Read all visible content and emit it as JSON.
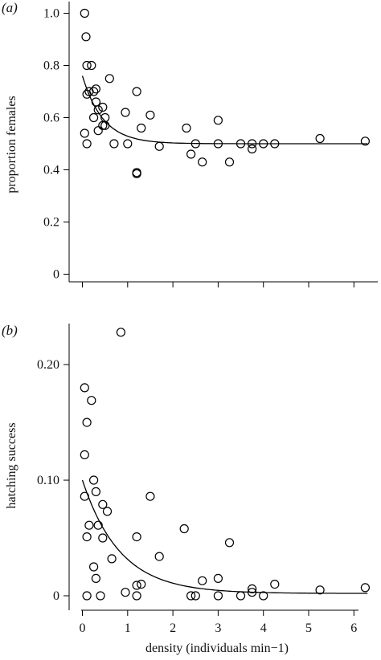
{
  "chart_data": [
    {
      "type": "scatter",
      "panel_label": "(a)",
      "ylabel": "proportion females",
      "xlim": [
        0,
        6.3
      ],
      "ylim": [
        0,
        1.0
      ],
      "yticks": [
        0,
        0.2,
        0.4,
        0.6,
        0.8,
        1.0
      ],
      "ytick_labels": [
        "0",
        "0.2",
        "0.4",
        "0.6",
        "0.8",
        "1.0"
      ],
      "grid": false,
      "fit": {
        "form": "a + b*exp(-k*x)",
        "a": 0.5,
        "b": 0.26,
        "k": 2.2
      },
      "points": [
        [
          0.05,
          1.0
        ],
        [
          0.08,
          0.91
        ],
        [
          0.1,
          0.8
        ],
        [
          0.2,
          0.8
        ],
        [
          0.1,
          0.69
        ],
        [
          0.15,
          0.7
        ],
        [
          0.25,
          0.7
        ],
        [
          0.3,
          0.71
        ],
        [
          0.3,
          0.66
        ],
        [
          0.35,
          0.63
        ],
        [
          0.25,
          0.6
        ],
        [
          0.45,
          0.64
        ],
        [
          0.5,
          0.6
        ],
        [
          0.45,
          0.57
        ],
        [
          0.5,
          0.57
        ],
        [
          0.05,
          0.54
        ],
        [
          0.35,
          0.55
        ],
        [
          0.1,
          0.5
        ],
        [
          0.6,
          0.75
        ],
        [
          0.7,
          0.5
        ],
        [
          0.95,
          0.62
        ],
        [
          1.0,
          0.5
        ],
        [
          1.2,
          0.7
        ],
        [
          1.3,
          0.56
        ],
        [
          1.2,
          0.39
        ],
        [
          1.2,
          0.385
        ],
        [
          1.5,
          0.61
        ],
        [
          1.7,
          0.49
        ],
        [
          2.3,
          0.56
        ],
        [
          2.4,
          0.46
        ],
        [
          2.5,
          0.5
        ],
        [
          2.65,
          0.43
        ],
        [
          3.0,
          0.59
        ],
        [
          3.0,
          0.5
        ],
        [
          3.25,
          0.43
        ],
        [
          3.5,
          0.5
        ],
        [
          3.75,
          0.5
        ],
        [
          3.75,
          0.48
        ],
        [
          4.0,
          0.5
        ],
        [
          4.25,
          0.5
        ],
        [
          5.25,
          0.52
        ],
        [
          6.25,
          0.51
        ]
      ]
    },
    {
      "type": "scatter",
      "panel_label": "(b)",
      "xlabel": "density (individuals min−1)",
      "ylabel": "hatching success",
      "xlim": [
        0,
        6.3
      ],
      "ylim": [
        0,
        0.24
      ],
      "xticks": [
        0,
        1,
        2,
        3,
        4,
        5,
        6
      ],
      "xtick_labels": [
        "0",
        "1",
        "2",
        "3",
        "4",
        "5",
        "6"
      ],
      "yticks": [
        0,
        0.1,
        0.2
      ],
      "ytick_labels": [
        "0",
        "0.10",
        "0.20"
      ],
      "grid": false,
      "fit": {
        "form": "a + b*exp(-k*x)",
        "a": 0.002,
        "b": 0.098,
        "k": 1.2
      },
      "points": [
        [
          0.85,
          0.228
        ],
        [
          0.05,
          0.18
        ],
        [
          0.2,
          0.169
        ],
        [
          0.1,
          0.15
        ],
        [
          0.05,
          0.122
        ],
        [
          0.25,
          0.1
        ],
        [
          0.3,
          0.09
        ],
        [
          0.05,
          0.086
        ],
        [
          0.45,
          0.079
        ],
        [
          0.55,
          0.073
        ],
        [
          0.15,
          0.061
        ],
        [
          0.35,
          0.061
        ],
        [
          0.1,
          0.051
        ],
        [
          0.45,
          0.05
        ],
        [
          1.5,
          0.086
        ],
        [
          1.2,
          0.051
        ],
        [
          1.7,
          0.034
        ],
        [
          0.65,
          0.032
        ],
        [
          0.25,
          0.025
        ],
        [
          0.3,
          0.015
        ],
        [
          0.1,
          0.0
        ],
        [
          0.4,
          0.0
        ],
        [
          0.95,
          0.003
        ],
        [
          1.2,
          0.009
        ],
        [
          1.3,
          0.01
        ],
        [
          1.2,
          0.0
        ],
        [
          2.25,
          0.058
        ],
        [
          2.4,
          0.0
        ],
        [
          2.5,
          0.0
        ],
        [
          2.65,
          0.013
        ],
        [
          3.0,
          0.015
        ],
        [
          3.0,
          0.0
        ],
        [
          3.25,
          0.046
        ],
        [
          3.5,
          0.0
        ],
        [
          3.75,
          0.006
        ],
        [
          3.75,
          0.003
        ],
        [
          4.0,
          0.0
        ],
        [
          4.25,
          0.01
        ],
        [
          5.25,
          0.005
        ],
        [
          6.25,
          0.007
        ]
      ]
    }
  ]
}
